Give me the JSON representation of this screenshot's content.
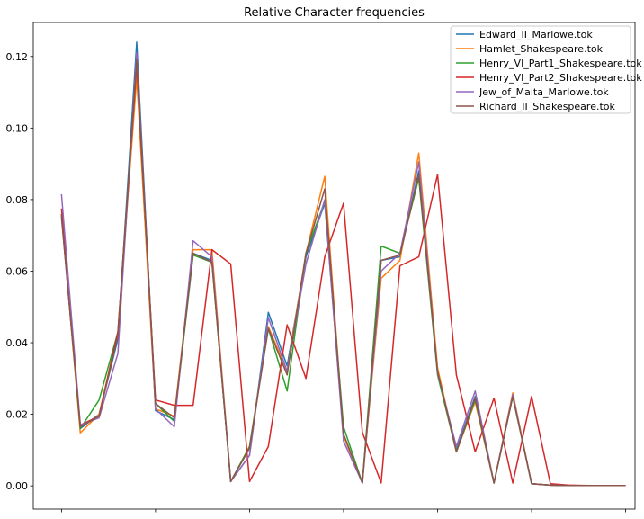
{
  "chart_data": {
    "type": "line",
    "title": "Relative Character frequencies",
    "xlabel": "",
    "ylabel": "",
    "ylim": [
      -0.0065,
      0.1295
    ],
    "xlim": [
      -1.5,
      30.5
    ],
    "yticks": [
      0.0,
      0.02,
      0.04,
      0.06,
      0.08,
      0.1,
      0.12
    ],
    "ytick_labels": [
      "0.00",
      "0.02",
      "0.04",
      "0.06",
      "0.08",
      "0.10",
      "0.12"
    ],
    "xticks": [
      0,
      5,
      10,
      15,
      20,
      25,
      30
    ],
    "x_tick_labels_shown": false,
    "grid": false,
    "legend_position": "top-right",
    "x": [
      0,
      1,
      2,
      3,
      4,
      5,
      6,
      7,
      8,
      9,
      10,
      11,
      12,
      13,
      14,
      15,
      16,
      17,
      18,
      19,
      20,
      21,
      22,
      23,
      24,
      25,
      26,
      27,
      28,
      29,
      30
    ],
    "series": [
      {
        "name": "Edward_II_Marlowe.tok",
        "color": "#1f77b4",
        "values": [
          0.0755,
          0.016,
          0.02,
          0.041,
          0.124,
          0.021,
          0.0185,
          0.065,
          0.063,
          0.0012,
          0.0085,
          0.0485,
          0.0335,
          0.064,
          0.079,
          0.014,
          0.0008,
          0.063,
          0.064,
          0.088,
          0.032,
          0.01,
          0.025,
          0.0008,
          0.025,
          0.0006,
          0.0002,
          0.0001,
          0.0001,
          0.0001,
          0.0001
        ]
      },
      {
        "name": "Hamlet_Shakespeare.tok",
        "color": "#ff7f0e",
        "values": [
          0.076,
          0.0148,
          0.02,
          0.043,
          0.114,
          0.0215,
          0.0195,
          0.066,
          0.066,
          0.0012,
          0.011,
          0.0445,
          0.032,
          0.065,
          0.0865,
          0.014,
          0.0008,
          0.058,
          0.063,
          0.093,
          0.033,
          0.0095,
          0.0235,
          0.0008,
          0.026,
          0.0006,
          0.0002,
          0.0001,
          0.0001,
          0.0001,
          0.0001
        ]
      },
      {
        "name": "Henry_VI_Part1_Shakespeare.tok",
        "color": "#2ca02c",
        "values": [
          0.076,
          0.016,
          0.024,
          0.043,
          0.118,
          0.023,
          0.018,
          0.0645,
          0.0625,
          0.0012,
          0.011,
          0.044,
          0.0265,
          0.065,
          0.0795,
          0.0165,
          0.0008,
          0.067,
          0.065,
          0.086,
          0.031,
          0.0095,
          0.024,
          0.0008,
          0.025,
          0.0006,
          0.0002,
          0.0001,
          0.0001,
          0.0001,
          0.0001
        ]
      },
      {
        "name": "Henry_VI_Part2_Shakespeare.tok",
        "color": "#d62728",
        "values": [
          0.0775,
          0.017,
          0.0195,
          0.043,
          0.1175,
          0.024,
          0.0225,
          0.0225,
          0.066,
          0.062,
          0.0012,
          0.011,
          0.045,
          0.03,
          0.064,
          0.079,
          0.015,
          0.0008,
          0.0615,
          0.064,
          0.087,
          0.031,
          0.0095,
          0.0245,
          0.0008,
          0.025,
          0.0006,
          0.0002,
          0.0001,
          0.0001,
          0.0001
        ]
      },
      {
        "name": "Jew_of_Malta_Marlowe.tok",
        "color": "#9467bd",
        "values": [
          0.0815,
          0.017,
          0.019,
          0.037,
          0.121,
          0.0215,
          0.0165,
          0.0685,
          0.064,
          0.0012,
          0.0085,
          0.047,
          0.032,
          0.062,
          0.08,
          0.0125,
          0.0008,
          0.06,
          0.065,
          0.0905,
          0.0315,
          0.011,
          0.0265,
          0.0008,
          0.0255,
          0.0006,
          0.0002,
          0.0001,
          0.0001,
          0.0001,
          0.0001
        ]
      },
      {
        "name": "Richard_II_Shakespeare.tok",
        "color": "#8c564b",
        "values": [
          0.075,
          0.0165,
          0.0195,
          0.042,
          0.119,
          0.023,
          0.019,
          0.065,
          0.0625,
          0.0012,
          0.0105,
          0.044,
          0.031,
          0.065,
          0.083,
          0.0145,
          0.0008,
          0.063,
          0.0645,
          0.087,
          0.032,
          0.0095,
          0.0245,
          0.0008,
          0.025,
          0.0006,
          0.0002,
          0.0001,
          0.0001,
          0.0001,
          0.0001
        ]
      }
    ]
  }
}
